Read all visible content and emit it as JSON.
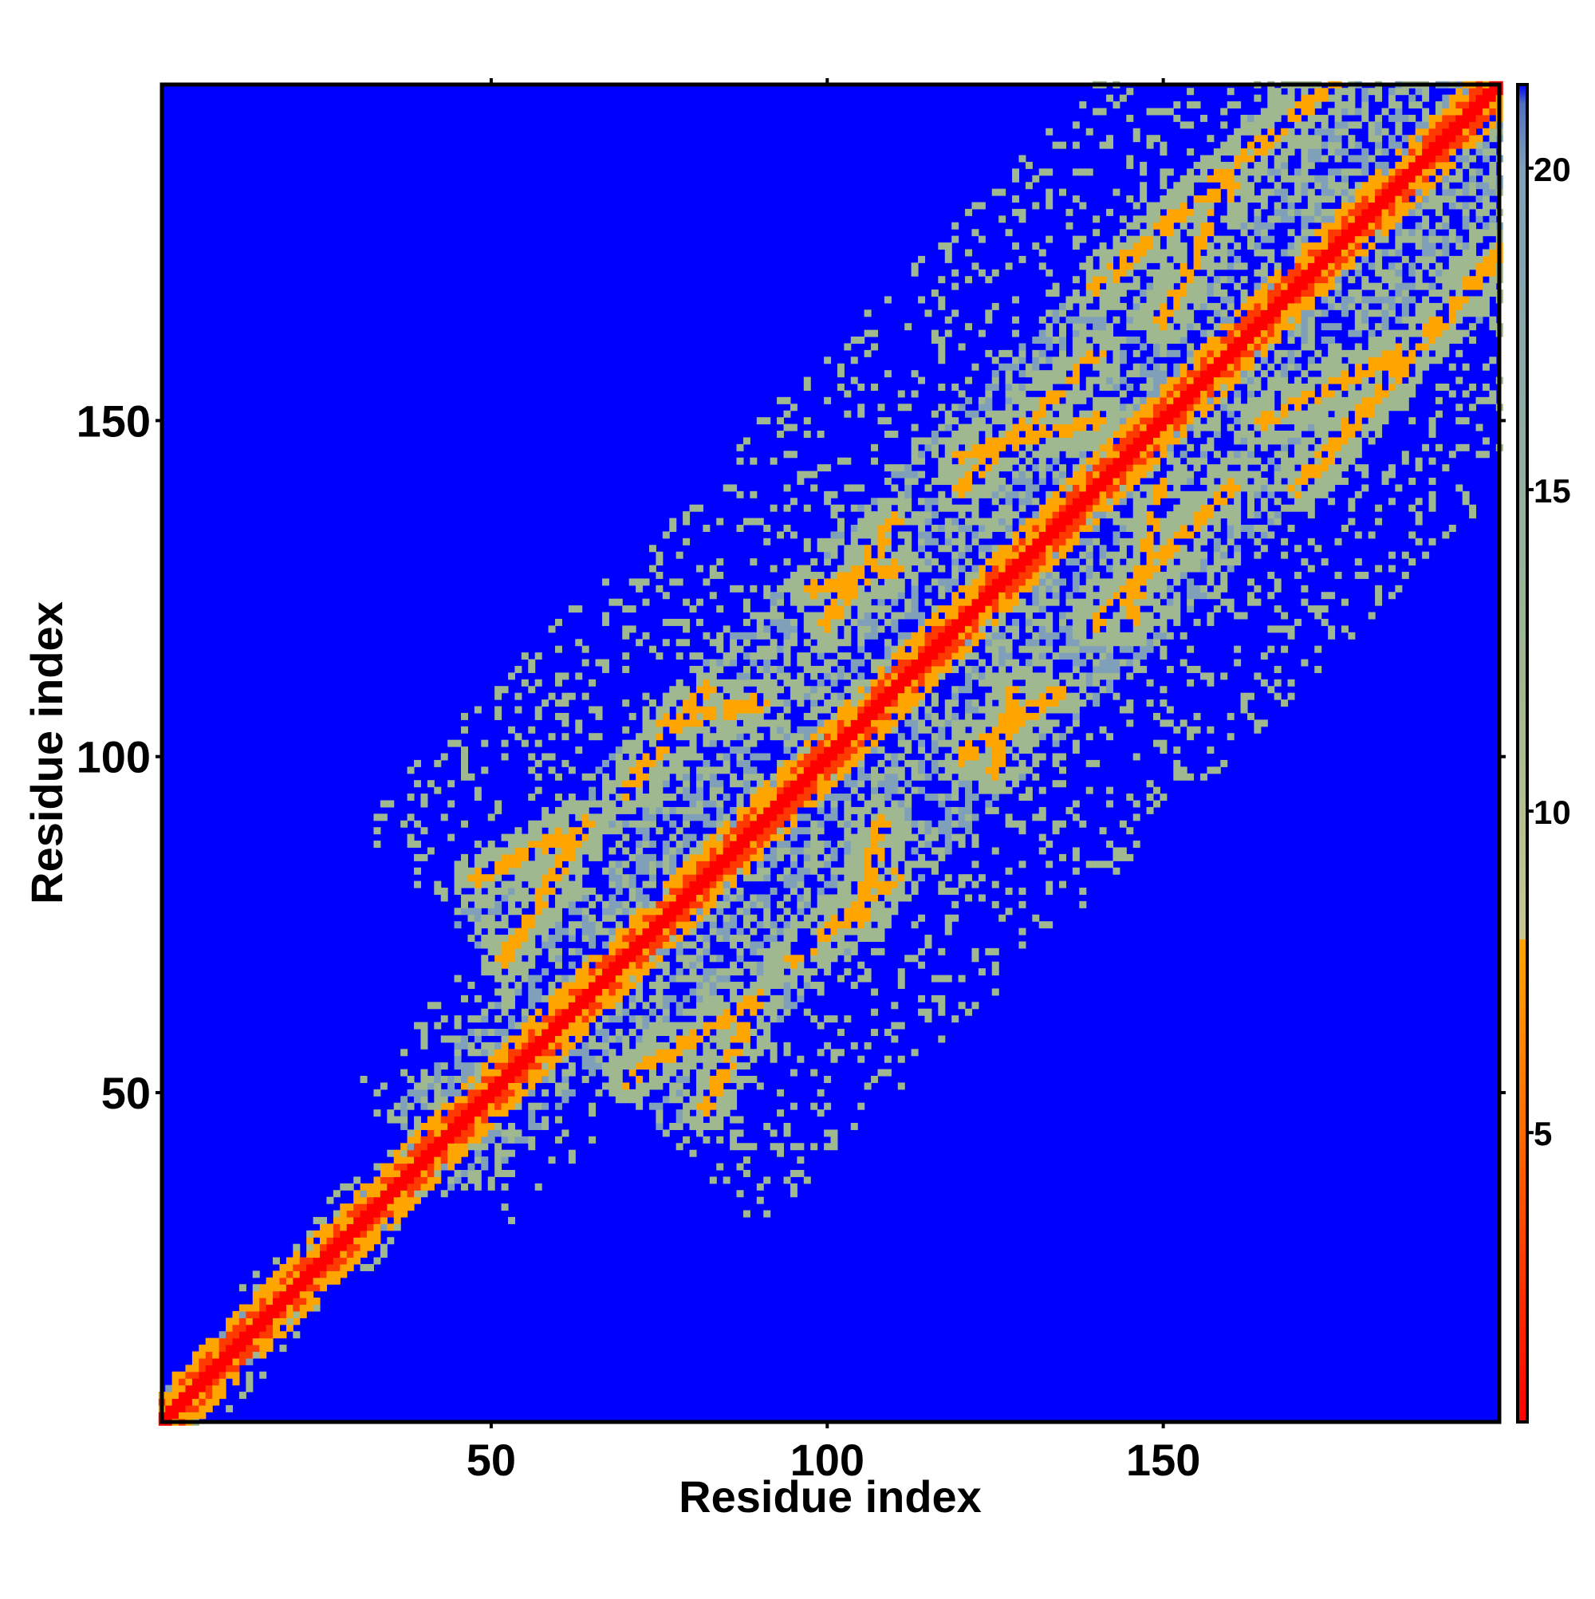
{
  "chart_data": {
    "type": "heatmap",
    "description_matrix": "symmetric residue-residue distance/contact map; dense diagonal band, parallel off-diagonal strands",
    "xlabel": "Residue index",
    "ylabel": "Residue index",
    "xlim": [
      1,
      200
    ],
    "ylim": [
      1,
      200
    ],
    "x_ticks": [
      50,
      100,
      150
    ],
    "y_ticks": [
      50,
      100,
      150
    ],
    "x_tick_labels": [
      "50",
      "100",
      "150"
    ],
    "y_tick_labels": [
      "50",
      "100",
      "150"
    ],
    "colorbar": {
      "range": [
        0.5,
        21.3
      ],
      "ticks": [
        5,
        10,
        15,
        20
      ],
      "tick_labels": [
        "5",
        "10",
        "15",
        "20"
      ],
      "stops": [
        {
          "value": 0.5,
          "color": "#ff0000"
        },
        {
          "value": 5.0,
          "color": "#ff6a00"
        },
        {
          "value": 8.0,
          "color": "#ffa500"
        },
        {
          "value": 8.01,
          "color": "#c8c890"
        },
        {
          "value": 12.0,
          "color": "#a0b890"
        },
        {
          "value": 20.0,
          "color": "#7fa0b8"
        },
        {
          "value": 21.0,
          "color": "#5070c0"
        },
        {
          "value": 21.3,
          "color": "#0000ff"
        }
      ]
    },
    "background_color": "#0000ff",
    "diagonal_color": "#ff0000",
    "contact_color": "#ffa500",
    "mid_color": "#a0b890",
    "features": [
      {
        "name": "main-diagonal",
        "from": [
          1,
          1
        ],
        "to": [
          200,
          200
        ]
      },
      {
        "name": "band-1",
        "from": [
          48,
          82
        ],
        "to": [
          64,
          90
        ]
      },
      {
        "name": "band-2",
        "from": [
          76,
          105
        ],
        "to": [
          90,
          108
        ]
      },
      {
        "name": "band-3",
        "from": [
          98,
          125
        ],
        "to": [
          110,
          128
        ]
      },
      {
        "name": "band-4",
        "from": [
          120,
          145
        ],
        "to": [
          140,
          150
        ]
      },
      {
        "name": "band-5",
        "from": [
          140,
          170
        ],
        "to": [
          175,
          200
        ]
      },
      {
        "name": "band-6",
        "from": [
          70,
          52
        ],
        "to": [
          90,
          64
        ]
      },
      {
        "name": "band-7",
        "from": [
          95,
          70
        ],
        "to": [
          110,
          82
        ]
      },
      {
        "name": "band-8",
        "from": [
          120,
          100
        ],
        "to": [
          135,
          110
        ]
      },
      {
        "name": "band-9",
        "from": [
          140,
          120
        ],
        "to": [
          160,
          140
        ]
      },
      {
        "name": "band-10",
        "from": [
          165,
          150
        ],
        "to": [
          185,
          160
        ]
      }
    ]
  }
}
